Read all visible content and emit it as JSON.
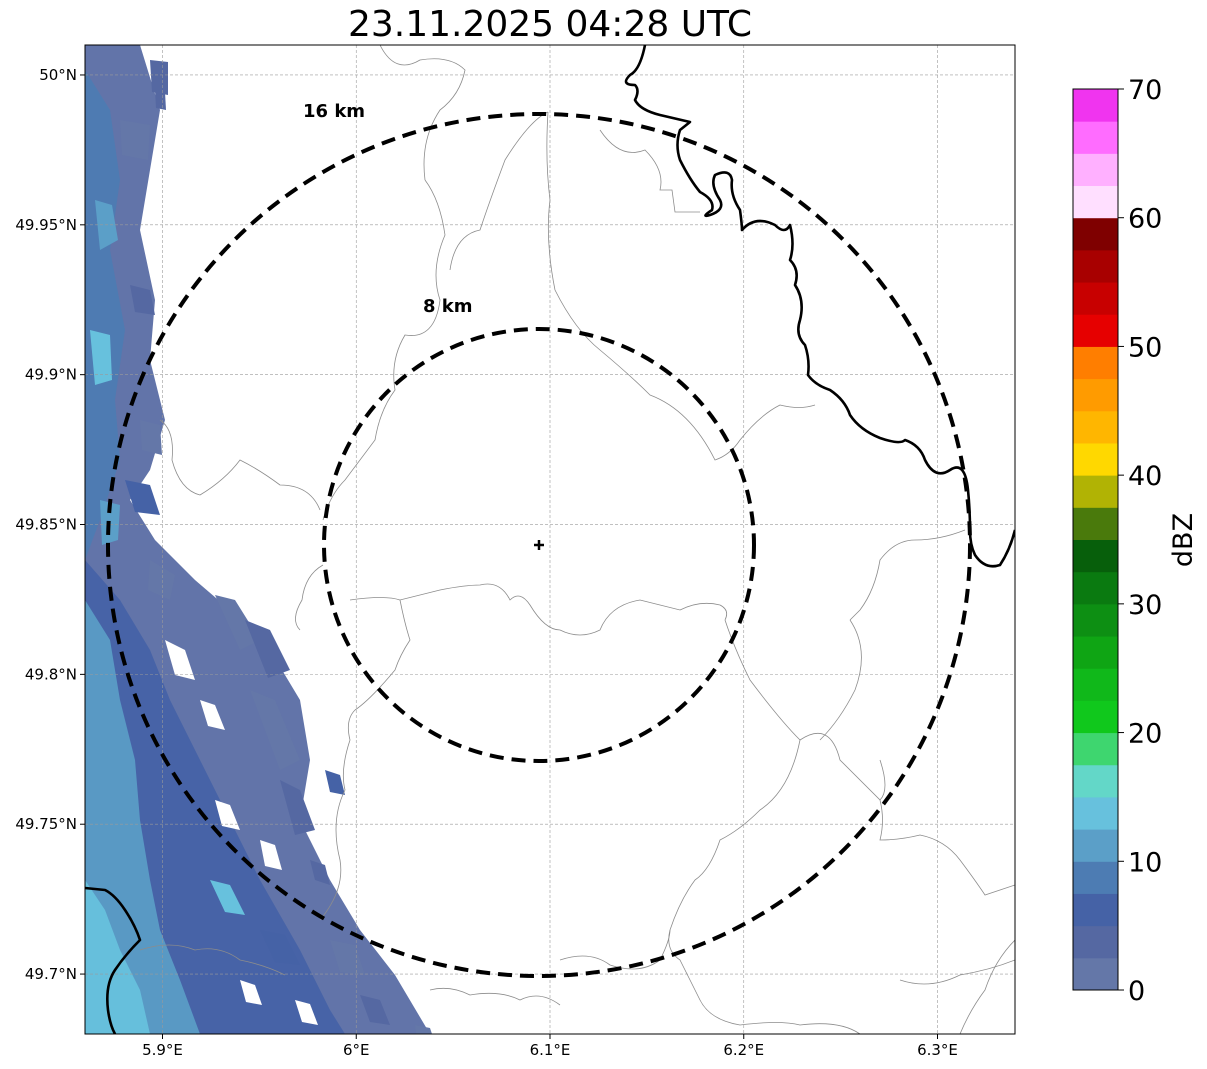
{
  "title": "23.11.2025 04:28 UTC",
  "map": {
    "lon_range": [
      5.86,
      6.34
    ],
    "lat_range": [
      49.68,
      50.01
    ],
    "lon_ticks": [
      {
        "value": 5.9,
        "label": "5.9°E"
      },
      {
        "value": 6.0,
        "label": "6°E"
      },
      {
        "value": 6.1,
        "label": "6.1°E"
      },
      {
        "value": 6.2,
        "label": "6.2°E"
      },
      {
        "value": 6.3,
        "label": "6.3°E"
      }
    ],
    "lat_ticks": [
      {
        "value": 50.0,
        "label": "50°N"
      },
      {
        "value": 49.95,
        "label": "49.95°N"
      },
      {
        "value": 49.9,
        "label": "49.9°N"
      },
      {
        "value": 49.85,
        "label": "49.85°N"
      },
      {
        "value": 49.8,
        "label": "49.8°N"
      },
      {
        "value": 49.75,
        "label": "49.75°N"
      },
      {
        "value": 49.7,
        "label": "49.7°N"
      }
    ],
    "gridlines": true,
    "radar_site": {
      "lon": 6.095,
      "lat": 49.843
    },
    "range_rings": [
      {
        "radius_km": 8,
        "label": "8 km"
      },
      {
        "radius_km": 16,
        "label": "16 km"
      }
    ]
  },
  "colorbar": {
    "label": "dBZ",
    "min": 0,
    "max": 70,
    "ticks": [
      "0",
      "10",
      "20",
      "30",
      "40",
      "50",
      "60",
      "70"
    ],
    "colors": [
      "#6477a8",
      "#5568a2",
      "#4562a6",
      "#4d7cb3",
      "#5b9fc8",
      "#67c1dd",
      "#63d7c8",
      "#3ed66f",
      "#10c81c",
      "#10b81a",
      "#0fa514",
      "#0d8f13",
      "#0a7a10",
      "#075f0b",
      "#4a7a0c",
      "#b1b304",
      "#ffd800",
      "#ffb600",
      "#ff9b00",
      "#ff7e00",
      "#e60000",
      "#c80000",
      "#a80000",
      "#7f0000",
      "#ffdfff",
      "#ffb0ff",
      "#ff6cff",
      "#f034ef"
    ]
  }
}
